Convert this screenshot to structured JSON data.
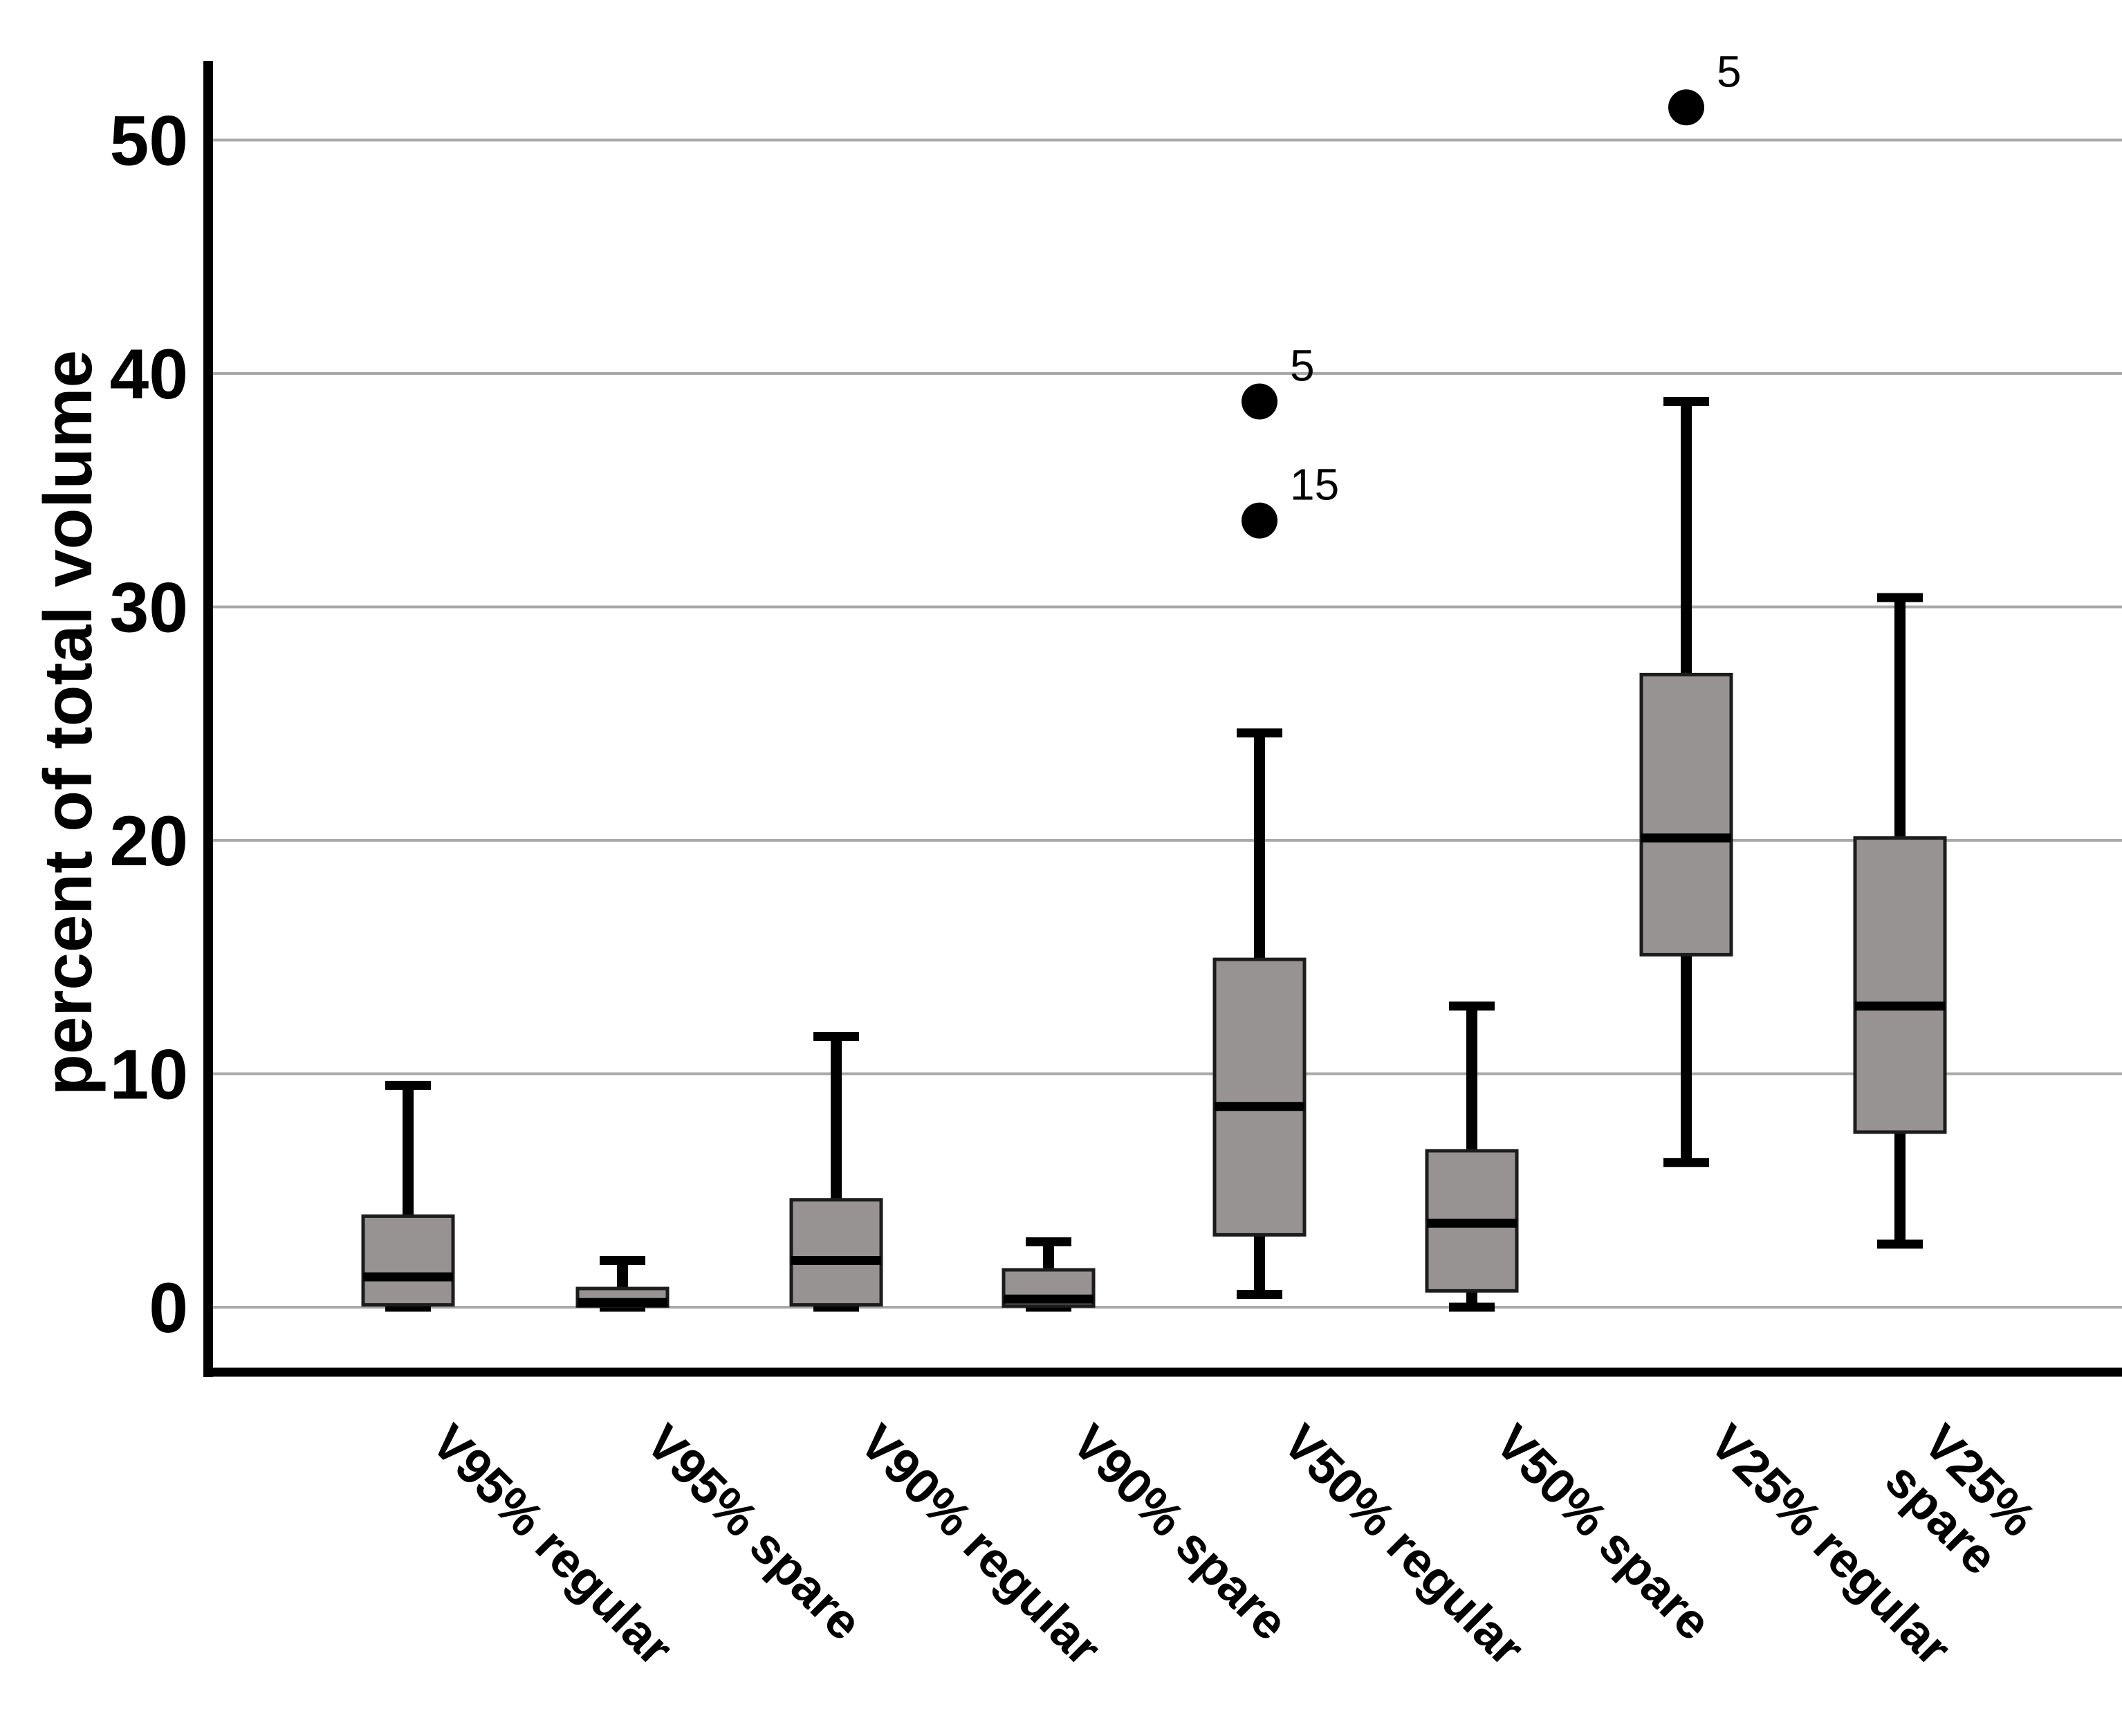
{
  "chart_data": {
    "type": "boxplot",
    "title": "",
    "xlabel": "",
    "ylabel": "percent of total volume",
    "ylim": [
      -2.8,
      56
    ],
    "yticks": [
      0,
      10,
      20,
      30,
      40,
      50
    ],
    "ytick_labels": [
      "0",
      "10",
      "20",
      "30",
      "40",
      "50"
    ],
    "grid": "horizontal",
    "legend": "none",
    "categories": [
      "V95% regular",
      "V95% spare",
      "V90% regular",
      "V90% spare",
      "V50% regular",
      "V50% spare",
      "V25% regular",
      "V25%\nspare"
    ],
    "boxes": [
      {
        "category": "V95% regular",
        "whisker_low": 0,
        "q1": 0.1,
        "median": 1.3,
        "q3": 3.9,
        "whisker_high": 9.5,
        "outliers": []
      },
      {
        "category": "V95% spare",
        "whisker_low": 0,
        "q1": 0.05,
        "median": 0.2,
        "q3": 0.8,
        "whisker_high": 2.0,
        "outliers": []
      },
      {
        "category": "V90% regular",
        "whisker_low": 0,
        "q1": 0.1,
        "median": 2.0,
        "q3": 4.6,
        "whisker_high": 11.6,
        "outliers": []
      },
      {
        "category": "V90% spare",
        "whisker_low": 0,
        "q1": 0.05,
        "median": 0.35,
        "q3": 1.6,
        "whisker_high": 2.8,
        "outliers": []
      },
      {
        "category": "V50% regular",
        "whisker_low": 0.55,
        "q1": 3.1,
        "median": 8.6,
        "q3": 14.9,
        "whisker_high": 24.6,
        "outliers": [
          {
            "value": 33.7,
            "label": "15"
          },
          {
            "value": 38.8,
            "label": "5"
          }
        ]
      },
      {
        "category": "V50% spare",
        "whisker_low": 0,
        "q1": 0.7,
        "median": 3.6,
        "q3": 6.7,
        "whisker_high": 12.9,
        "outliers": []
      },
      {
        "category": "V25% regular",
        "whisker_low": 6.2,
        "q1": 15.1,
        "median": 20.1,
        "q3": 27.1,
        "whisker_high": 38.8,
        "outliers": [
          {
            "value": 51.4,
            "label": "5"
          }
        ]
      },
      {
        "category": "V25% spare",
        "whisker_low": 2.7,
        "q1": 7.5,
        "median": 12.9,
        "q3": 20.1,
        "whisker_high": 30.4,
        "outliers": []
      }
    ],
    "colors": {
      "box_fill": "#979393",
      "box_border": "#1c1c1c",
      "whisker": "#000000",
      "median": "#000000",
      "outlier": "#000000",
      "gridline": "#a9a9a9",
      "axis": "#000000",
      "text": "#000000",
      "background": "#ffffff"
    }
  }
}
